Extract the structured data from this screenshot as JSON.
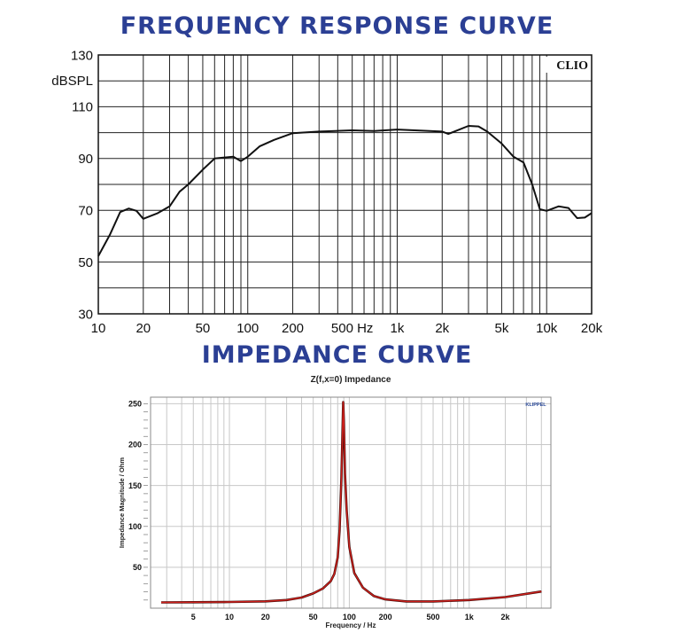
{
  "headings": {
    "frequency_response": "FREQUENCY RESPONSE CURVE",
    "impedance": "IMPEDANCE CURVE"
  },
  "chart_data": [
    {
      "type": "line",
      "title": "",
      "xlabel": "",
      "ylabel": "dBSPL",
      "xscale": "log",
      "xlim": [
        10,
        20000
      ],
      "ylim": [
        30,
        130
      ],
      "grid": true,
      "logo": "CLIO",
      "line_color": "#111111",
      "x_ticks": [
        {
          "value": 10,
          "label": "10"
        },
        {
          "value": 20,
          "label": "20"
        },
        {
          "value": 50,
          "label": "50"
        },
        {
          "value": 100,
          "label": "100"
        },
        {
          "value": 200,
          "label": "200"
        },
        {
          "value": 500,
          "label": "500 Hz"
        },
        {
          "value": 1000,
          "label": "1k"
        },
        {
          "value": 2000,
          "label": "2k"
        },
        {
          "value": 5000,
          "label": "5k"
        },
        {
          "value": 10000,
          "label": "10k"
        },
        {
          "value": 20000,
          "label": "20k"
        }
      ],
      "y_ticks": [
        {
          "value": 130,
          "label": "130"
        },
        {
          "value": 110,
          "label": "110"
        },
        {
          "value": 90,
          "label": "90"
        },
        {
          "value": 70,
          "label": "70"
        },
        {
          "value": 50,
          "label": "50"
        },
        {
          "value": 30,
          "label": "30"
        }
      ],
      "x": [
        10,
        12,
        14,
        16,
        18,
        20,
        25,
        30,
        35,
        40,
        50,
        60,
        70,
        80,
        90,
        100,
        120,
        150,
        200,
        300,
        500,
        700,
        1000,
        2000,
        2200,
        3000,
        3500,
        4000,
        5000,
        6000,
        7000,
        8000,
        9000,
        10000,
        12000,
        14000,
        16000,
        18000,
        20000
      ],
      "y": [
        52.3,
        60.8,
        69.3,
        70.7,
        69.8,
        66.7,
        68.9,
        71.5,
        77.2,
        80,
        85.7,
        90,
        90.4,
        90.7,
        89,
        90.7,
        94.7,
        97.2,
        99.8,
        100.4,
        100.9,
        100.6,
        101.2,
        100.4,
        99.5,
        102.6,
        102.4,
        100.4,
        95.8,
        90.7,
        88.5,
        80,
        70.4,
        69.8,
        71.5,
        70.9,
        67,
        67.2,
        68.9
      ]
    },
    {
      "type": "line",
      "title": "Z(f,x=0) Impedance",
      "xlabel": "Frequency / Hz",
      "ylabel": "Impedance Magnitude / Ohm",
      "xscale": "log",
      "xlim": [
        2.2,
        4800
      ],
      "ylim": [
        0,
        258
      ],
      "grid": true,
      "logo": "KLIPPEL",
      "line_color": "#d0201c",
      "x_ticks": [
        {
          "value": 5,
          "label": "5"
        },
        {
          "value": 10,
          "label": "10"
        },
        {
          "value": 20,
          "label": "20"
        },
        {
          "value": 50,
          "label": "50"
        },
        {
          "value": 100,
          "label": "100"
        },
        {
          "value": 200,
          "label": "200"
        },
        {
          "value": 500,
          "label": "500"
        },
        {
          "value": 1000,
          "label": "1k"
        },
        {
          "value": 2000,
          "label": "2k"
        }
      ],
      "y_ticks": [
        {
          "value": 50,
          "label": "50"
        },
        {
          "value": 100,
          "label": "100"
        },
        {
          "value": 150,
          "label": "150"
        },
        {
          "value": 200,
          "label": "200"
        },
        {
          "value": 250,
          "label": "250"
        }
      ],
      "x": [
        2.7,
        5,
        10,
        20,
        30,
        40,
        50,
        60,
        70,
        75,
        80,
        83,
        86,
        88,
        89,
        90,
        92,
        95,
        100,
        110,
        130,
        160,
        200,
        300,
        500,
        1000,
        2000,
        4000
      ],
      "y": [
        7,
        7.3,
        7.6,
        8.3,
        10,
        13,
        18,
        24,
        33,
        42,
        62,
        95,
        160,
        225,
        252,
        230,
        165,
        120,
        75,
        43,
        25,
        15,
        10.7,
        8.2,
        8.2,
        10,
        13.6,
        20.4
      ]
    }
  ]
}
